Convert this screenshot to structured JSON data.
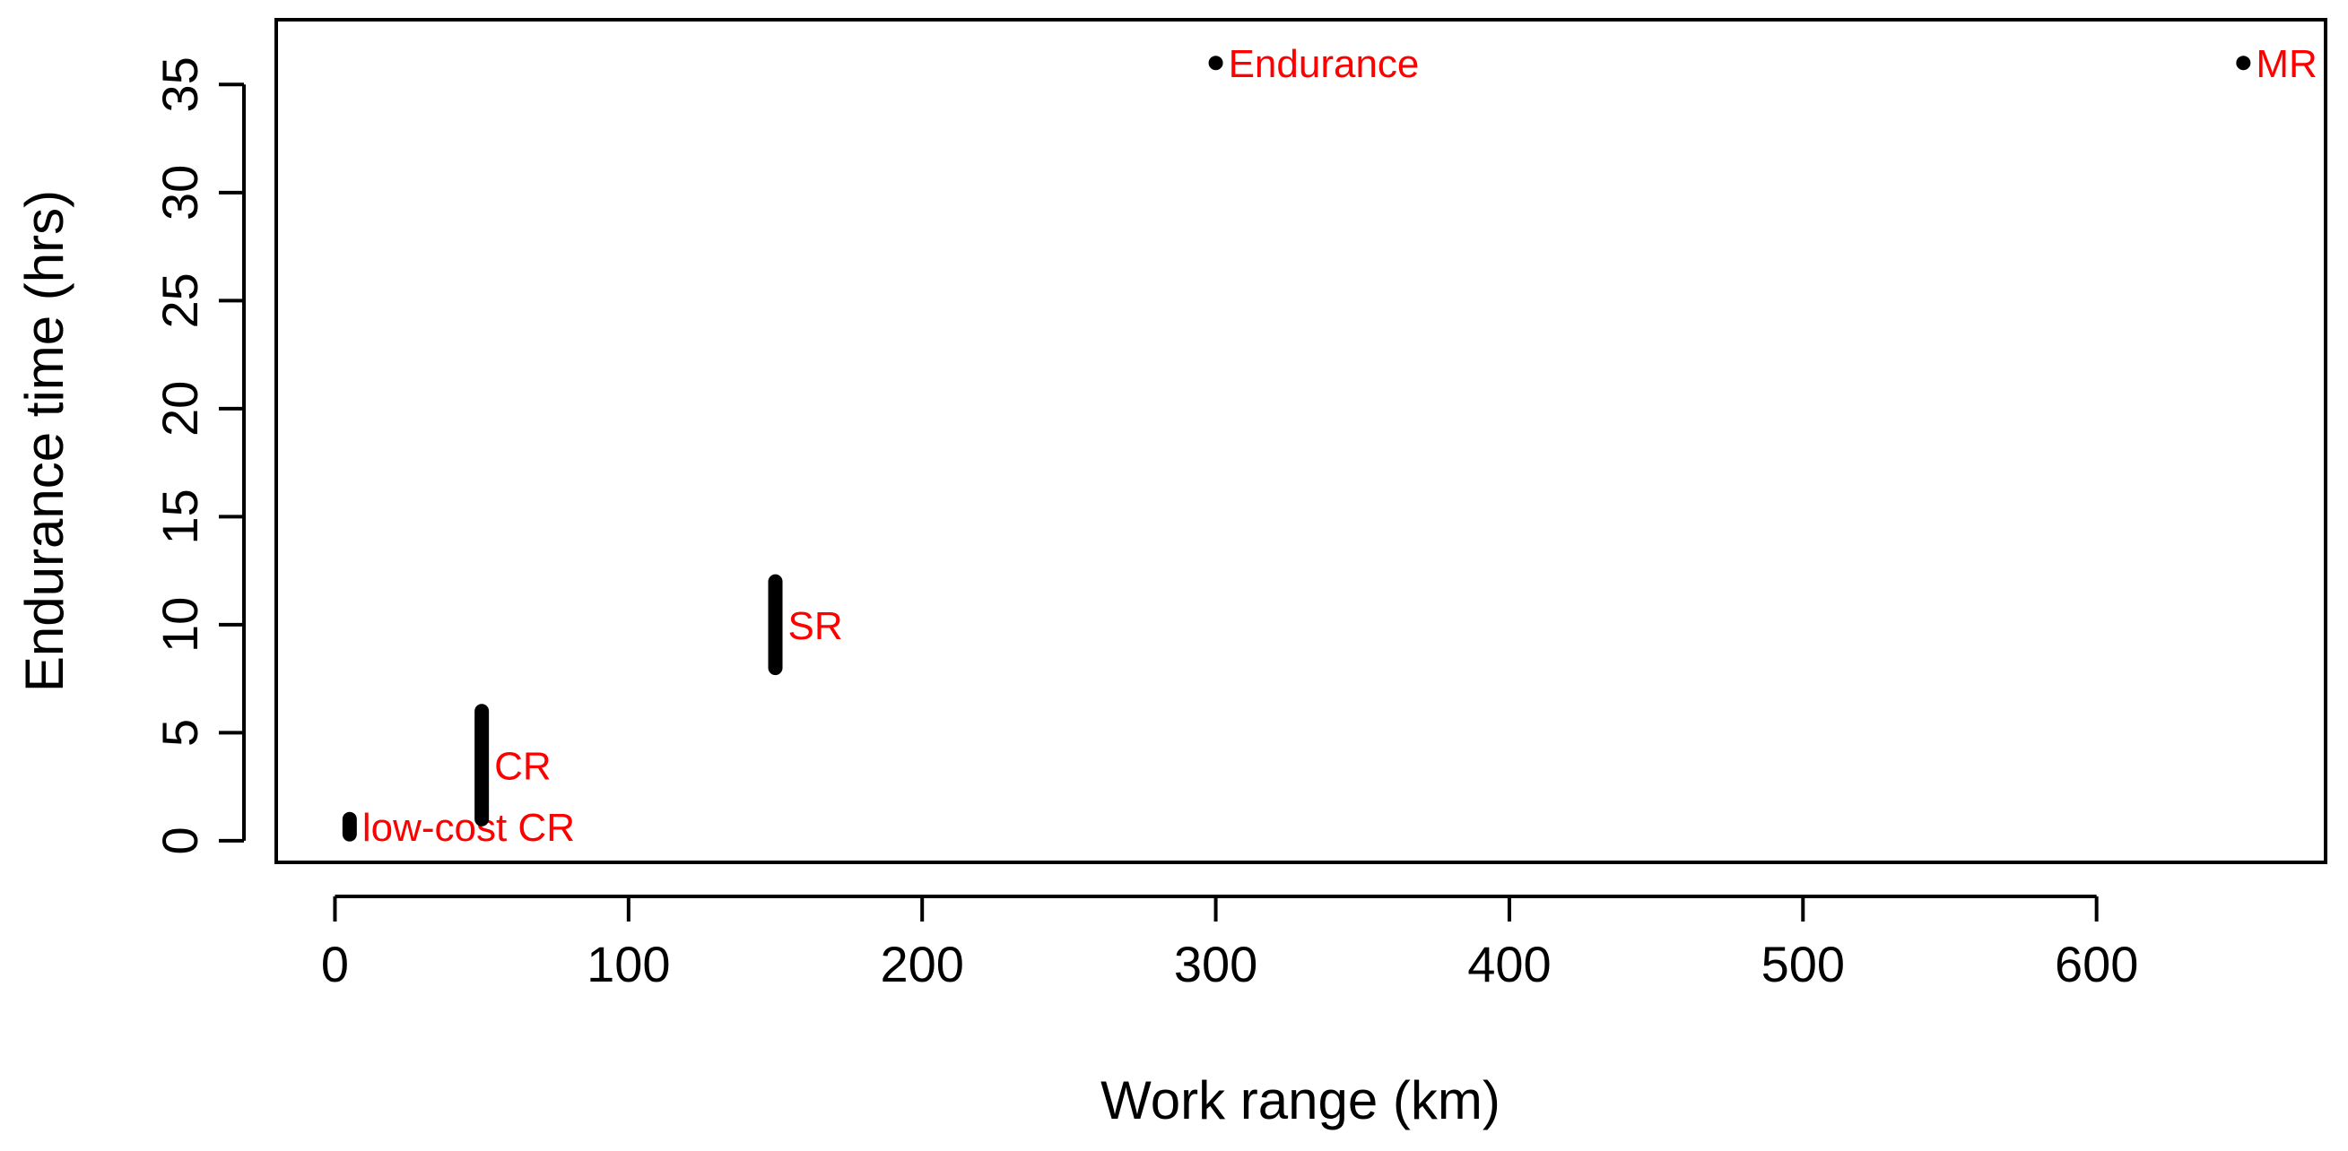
{
  "chart_data": {
    "type": "scatter",
    "xlabel": "Work range (km)",
    "ylabel": "Endurance time (hrs)",
    "xlim": [
      -20,
      678
    ],
    "ylim": [
      -1.0,
      38.0
    ],
    "xticks": [
      0,
      100,
      200,
      300,
      400,
      500,
      600
    ],
    "yticks": [
      0,
      5,
      10,
      15,
      20,
      25,
      30,
      35
    ],
    "grid": false,
    "legend": "none",
    "colors": {
      "marks": "#000000",
      "labels": "#ff0000",
      "axes": "#000000"
    },
    "series": [
      {
        "points": [
          {
            "x": 5,
            "y_min": 0.3,
            "y_max": 1.0,
            "label": "low-cost CR"
          },
          {
            "x": 50,
            "y_min": 1.0,
            "y_max": 6.0,
            "label": "CR"
          },
          {
            "x": 150,
            "y_min": 8.0,
            "y_max": 12.0,
            "label": "SR"
          },
          {
            "x": 300,
            "y_min": 36.0,
            "y_max": 36.0,
            "label": "Endurance"
          },
          {
            "x": 650,
            "y_min": 36.0,
            "y_max": 36.0,
            "label": "MR"
          }
        ]
      }
    ]
  }
}
